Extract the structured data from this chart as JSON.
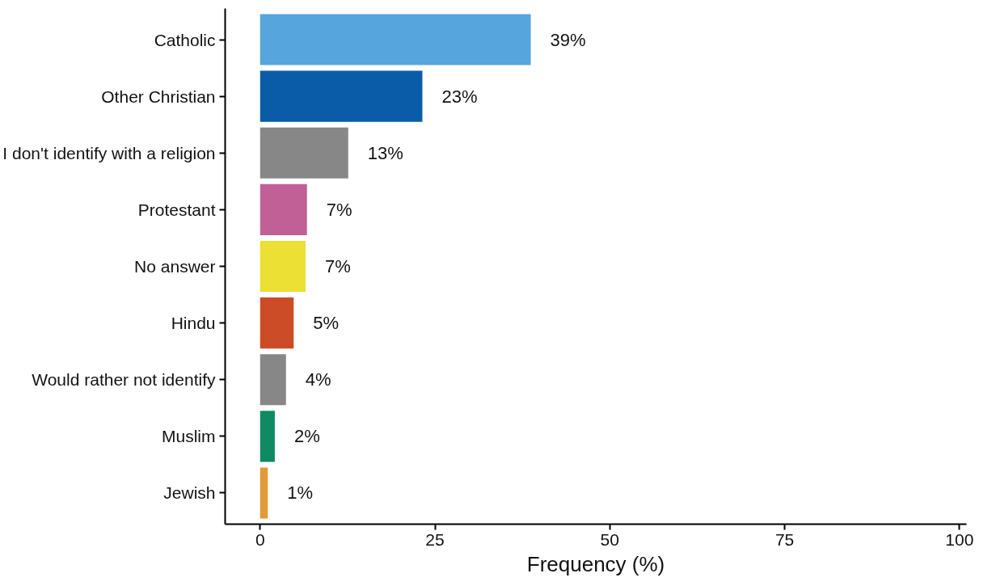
{
  "chart_data": {
    "type": "bar",
    "orientation": "horizontal",
    "xlabel": "Frequency (%)",
    "categories": [
      "Catholic",
      "Other Christian",
      "I don't identify with a religion",
      "Protestant",
      "No answer",
      "Hindu",
      "Would rather not identify",
      "Muslim",
      "Jewish"
    ],
    "values": [
      38.7,
      23.2,
      12.6,
      6.7,
      6.5,
      4.8,
      3.7,
      2.1,
      1.1
    ],
    "value_labels": [
      "39%",
      "23%",
      "13%",
      "7%",
      "7%",
      "5%",
      "4%",
      "2%",
      "1%"
    ],
    "colors": [
      "#56a5dc",
      "#0a5ca8",
      "#878787",
      "#c06096",
      "#ebe033",
      "#cc4c27",
      "#878787",
      "#0f8a63",
      "#e29a38"
    ],
    "xlim": [
      -5,
      101
    ],
    "xticks": [
      0,
      25,
      50,
      75,
      100
    ],
    "grid": false
  }
}
